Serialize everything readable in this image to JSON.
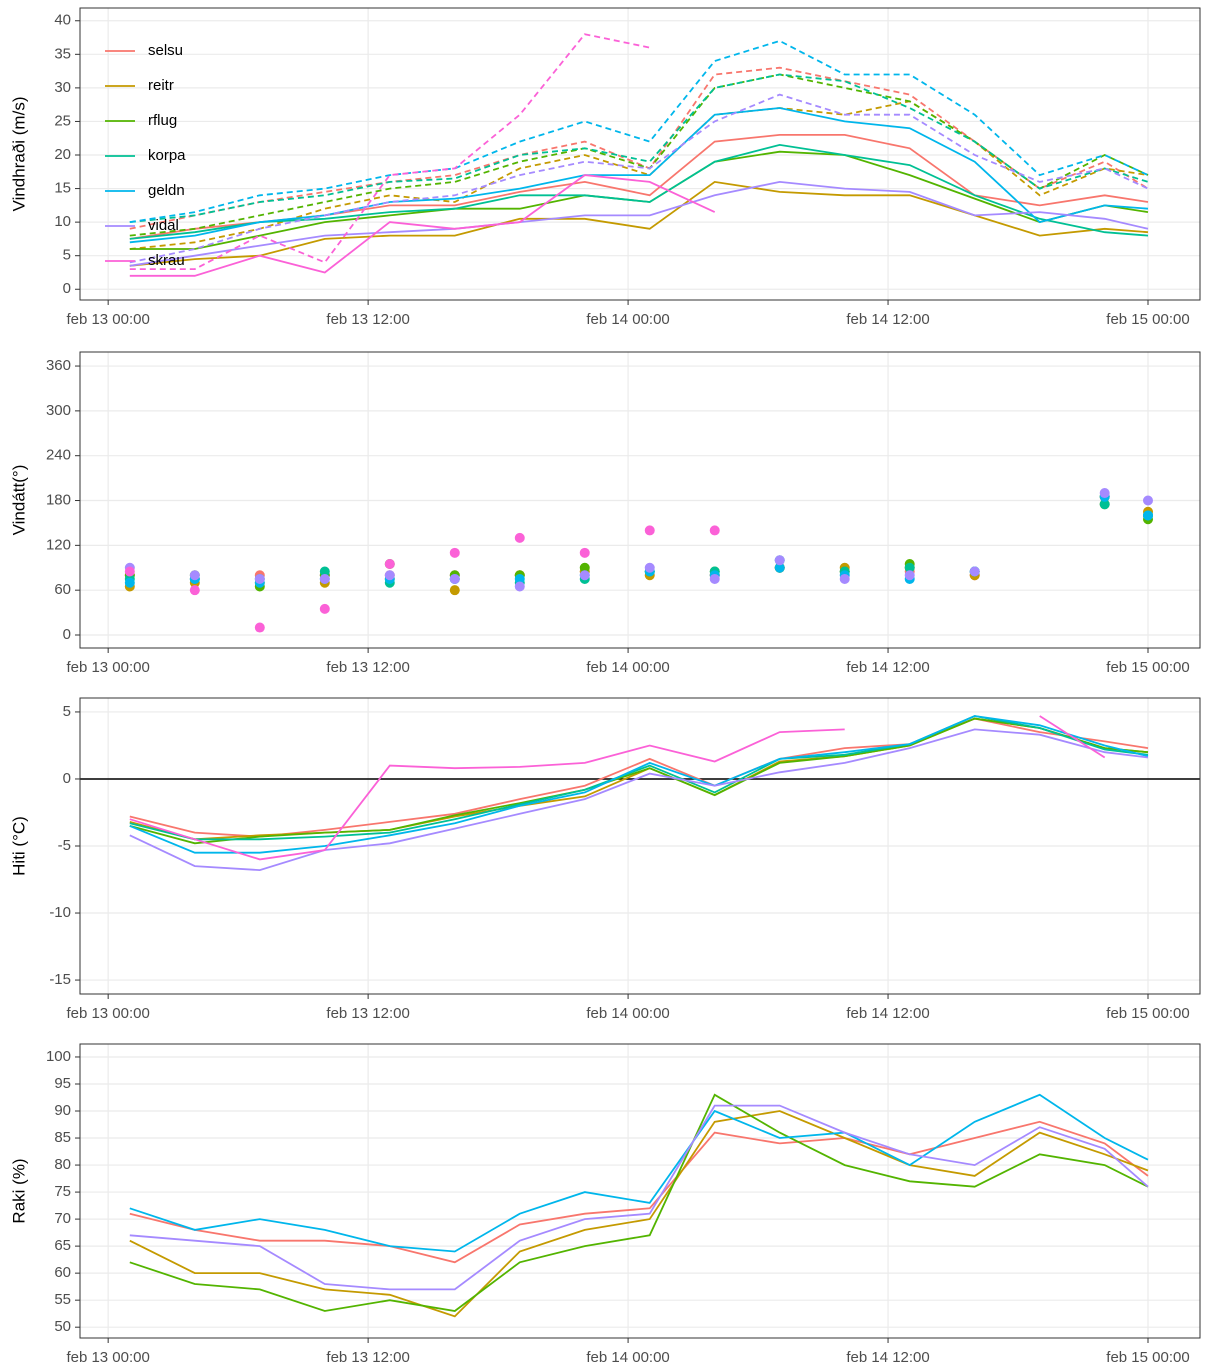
{
  "chart_data": [
    {
      "type": "line",
      "y_label": "Vindhraði (m/s)",
      "legend": "top-left",
      "grid": true,
      "x": [
        1,
        4,
        7,
        10,
        13,
        16,
        19,
        22,
        25,
        28,
        31,
        34,
        37,
        40,
        43,
        46,
        48
      ],
      "xlim": [
        -1.3,
        50.4
      ],
      "xticks": [
        {
          "value": 0,
          "label": "feb 13 00:00"
        },
        {
          "value": 12,
          "label": "feb 13 12:00"
        },
        {
          "value": 24,
          "label": "feb 14 00:00"
        },
        {
          "value": 36,
          "label": "feb 14 12:00"
        },
        {
          "value": 48,
          "label": "feb 15 00:00"
        }
      ],
      "ylim": [
        -1.6,
        41.9
      ],
      "yticks": [
        0,
        5,
        10,
        15,
        20,
        25,
        30,
        35,
        40
      ],
      "series": [
        {
          "name": "selsu",
          "color": "#F8766D",
          "values": [
            7.5,
            9,
            10,
            11,
            12.5,
            12.5,
            14.5,
            16,
            14,
            22,
            23,
            23,
            21,
            14,
            12.5,
            14,
            13
          ],
          "gust": [
            9,
            11,
            13,
            14.5,
            16,
            17,
            20,
            22,
            18,
            32,
            33,
            31,
            29,
            22,
            15,
            19,
            15
          ]
        },
        {
          "name": "reitr",
          "color": "#C49A00",
          "values": [
            3.5,
            4.5,
            5,
            7.5,
            8,
            8,
            10.5,
            10.5,
            9,
            16,
            14.5,
            14,
            14,
            11,
            8,
            9,
            8.5
          ],
          "gust": [
            6,
            7,
            9,
            12,
            14,
            13,
            18,
            20,
            17,
            26,
            27,
            26,
            28,
            22,
            14,
            18,
            17
          ]
        },
        {
          "name": "rflug",
          "color": "#53B400",
          "values": [
            6,
            6,
            8,
            10,
            11,
            12,
            12,
            14,
            13,
            19,
            20.5,
            20,
            17,
            13.5,
            10,
            12.5,
            11.5
          ],
          "gust": [
            8,
            9,
            11,
            13,
            15,
            16,
            19,
            21,
            18,
            30,
            32,
            30,
            28,
            22,
            15,
            20,
            17
          ]
        },
        {
          "name": "korpa",
          "color": "#00C094",
          "values": [
            7.5,
            8.5,
            10,
            10.5,
            11.5,
            12,
            14,
            14,
            13,
            19,
            21.5,
            20,
            18.5,
            14,
            10.5,
            8.5,
            8
          ],
          "gust": [
            10,
            11,
            13,
            14,
            16,
            16.5,
            20,
            21,
            19,
            30,
            32,
            31,
            27,
            22,
            15,
            18,
            16
          ]
        },
        {
          "name": "geldn",
          "color": "#00B6EB",
          "values": [
            7,
            8,
            10,
            11,
            13,
            13.5,
            15,
            17,
            17,
            26,
            27,
            25,
            24,
            19,
            10,
            12.5,
            12
          ],
          "gust": [
            10,
            11.5,
            14,
            15,
            17,
            18,
            22,
            25,
            22,
            34,
            37,
            32,
            32,
            26,
            17,
            20,
            17
          ]
        },
        {
          "name": "vidal",
          "color": "#A58AFF",
          "values": [
            3.5,
            5,
            6.5,
            8,
            8.5,
            9,
            10,
            11,
            11,
            14,
            16,
            15,
            14.5,
            11,
            11.5,
            10.5,
            9
          ],
          "gust": [
            4,
            6,
            9,
            11,
            13,
            14,
            17,
            19,
            18,
            25,
            29,
            26,
            26,
            20,
            16,
            18,
            15
          ]
        },
        {
          "name": "skrau",
          "color": "#FB61D7",
          "values": [
            2,
            2,
            5,
            2.5,
            10,
            9,
            10,
            17,
            16,
            11.5,
            null,
            null,
            null,
            null,
            null,
            null,
            null
          ],
          "gust": [
            3,
            3,
            8,
            4,
            17,
            18,
            26,
            38,
            36,
            null,
            null,
            null,
            null,
            null,
            null,
            null,
            null
          ]
        }
      ]
    },
    {
      "type": "scatter",
      "y_label": "Vindátt(°)",
      "grid": true,
      "x": [
        1,
        4,
        7,
        10,
        13,
        16,
        19,
        22,
        25,
        28,
        31,
        34,
        37,
        40,
        43,
        46,
        48
      ],
      "xlim": [
        -1.3,
        50.4
      ],
      "xticks": [
        {
          "value": 0,
          "label": "feb 13 00:00"
        },
        {
          "value": 12,
          "label": "feb 13 12:00"
        },
        {
          "value": 24,
          "label": "feb 14 00:00"
        },
        {
          "value": 36,
          "label": "feb 14 12:00"
        },
        {
          "value": 48,
          "label": "feb 15 00:00"
        }
      ],
      "ylim": [
        -17.4,
        378.8
      ],
      "yticks": [
        0,
        60,
        120,
        180,
        240,
        300,
        360
      ],
      "series": [
        {
          "color": "#F8766D",
          "values": [
            80,
            75,
            80,
            80,
            80,
            80,
            80,
            85,
            85,
            80,
            90,
            85,
            85,
            80,
            null,
            185,
            160
          ]
        },
        {
          "color": "#C49A00",
          "values": [
            65,
            70,
            70,
            70,
            75,
            60,
            80,
            85,
            80,
            80,
            90,
            90,
            90,
            80,
            null,
            175,
            165
          ]
        },
        {
          "color": "#53B400",
          "values": [
            80,
            80,
            65,
            80,
            95,
            80,
            80,
            90,
            85,
            85,
            90,
            85,
            95,
            85,
            null,
            185,
            155
          ]
        },
        {
          "color": "#00C094",
          "values": [
            75,
            75,
            75,
            85,
            70,
            75,
            70,
            75,
            85,
            85,
            100,
            85,
            90,
            85,
            null,
            175,
            160
          ]
        },
        {
          "color": "#00B6EB",
          "values": [
            70,
            75,
            70,
            75,
            75,
            75,
            75,
            80,
            85,
            80,
            90,
            80,
            75,
            85,
            null,
            185,
            160
          ]
        },
        {
          "color": "#A58AFF",
          "values": [
            90,
            80,
            75,
            75,
            80,
            75,
            65,
            80,
            90,
            75,
            100,
            75,
            80,
            85,
            null,
            190,
            180
          ]
        },
        {
          "color": "#FB61D7",
          "values": [
            85,
            60,
            10,
            35,
            95,
            110,
            130,
            110,
            140,
            140,
            null,
            null,
            null,
            null,
            null,
            null,
            null
          ]
        }
      ]
    },
    {
      "type": "line",
      "y_label": "Hiti (°C)",
      "grid": true,
      "hline": 0,
      "x": [
        1,
        4,
        7,
        10,
        13,
        16,
        19,
        22,
        25,
        28,
        31,
        34,
        37,
        40,
        43,
        46,
        48
      ],
      "xlim": [
        -1.3,
        50.4
      ],
      "xticks": [
        {
          "value": 0,
          "label": "feb 13 00:00"
        },
        {
          "value": 12,
          "label": "feb 13 12:00"
        },
        {
          "value": 24,
          "label": "feb 14 00:00"
        },
        {
          "value": 36,
          "label": "feb 14 12:00"
        },
        {
          "value": 48,
          "label": "feb 15 00:00"
        }
      ],
      "ylim": [
        -16.04,
        6.04
      ],
      "yticks": [
        -15,
        -10,
        -5,
        0,
        5
      ],
      "series": [
        {
          "color": "#F8766D",
          "values": [
            -2.8,
            -4,
            -4.3,
            -3.8,
            -3.2,
            -2.6,
            -1.5,
            -0.5,
            1.5,
            -0.5,
            1.5,
            2.3,
            2.6,
            4.5,
            3.5,
            2.8,
            2.3
          ]
        },
        {
          "color": "#C49A00",
          "values": [
            -3.2,
            -4.5,
            -4.2,
            -4,
            -3.8,
            -2.8,
            -2,
            -1.3,
            0.8,
            -1.2,
            1.3,
            1.7,
            2.5,
            4.5,
            3.8,
            2.3,
            2
          ]
        },
        {
          "color": "#53B400",
          "values": [
            -3.5,
            -4.8,
            -4.3,
            -4,
            -3.8,
            -2.7,
            -1.8,
            -0.8,
            0.8,
            -1.2,
            1.2,
            1.7,
            2.5,
            4.5,
            3.8,
            2.3,
            2
          ]
        },
        {
          "color": "#00C094",
          "values": [
            -3.3,
            -4.5,
            -4.5,
            -4.3,
            -4,
            -3,
            -1.9,
            -0.8,
            1,
            -1,
            1.5,
            1.8,
            2.6,
            4.7,
            3.8,
            2.2,
            1.8
          ]
        },
        {
          "color": "#00B6EB",
          "values": [
            -3.5,
            -5.5,
            -5.5,
            -5,
            -4.2,
            -3.3,
            -2,
            -1,
            1.2,
            -0.5,
            1.5,
            2,
            2.6,
            4.7,
            4,
            2.5,
            1.7
          ]
        },
        {
          "color": "#A58AFF",
          "values": [
            -4.2,
            -6.5,
            -6.8,
            -5.3,
            -4.8,
            -3.7,
            -2.6,
            -1.5,
            0.4,
            -0.5,
            0.5,
            1.2,
            2.3,
            3.7,
            3.3,
            2,
            1.6
          ]
        },
        {
          "color": "#FB61D7",
          "values": [
            -3,
            -4.5,
            -6,
            -5.3,
            1,
            0.8,
            0.9,
            1.2,
            2.5,
            1.3,
            3.5,
            3.7,
            null,
            null,
            4.7,
            1.6,
            null
          ]
        }
      ]
    },
    {
      "type": "line",
      "y_label": "Raki (%)",
      "grid": true,
      "x": [
        1,
        4,
        7,
        10,
        13,
        16,
        19,
        22,
        25,
        28,
        31,
        34,
        37,
        40,
        43,
        46,
        48
      ],
      "xlim": [
        -1.3,
        50.4
      ],
      "xticks": [
        {
          "value": 0,
          "label": "feb 13 00:00"
        },
        {
          "value": 12,
          "label": "feb 13 12:00"
        },
        {
          "value": 24,
          "label": "feb 14 00:00"
        },
        {
          "value": 36,
          "label": "feb 14 12:00"
        },
        {
          "value": 48,
          "label": "feb 15 00:00"
        }
      ],
      "ylim": [
        48,
        102.4
      ],
      "yticks": [
        50,
        55,
        60,
        65,
        70,
        75,
        80,
        85,
        90,
        95,
        100
      ],
      "series": [
        {
          "color": "#F8766D",
          "values": [
            71,
            68,
            66,
            66,
            65,
            62,
            69,
            71,
            72,
            86,
            84,
            85,
            82,
            85,
            88,
            84,
            78
          ]
        },
        {
          "color": "#C49A00",
          "values": [
            66,
            60,
            60,
            57,
            56,
            52,
            64,
            68,
            70,
            88,
            90,
            85,
            80,
            78,
            86,
            82,
            79
          ]
        },
        {
          "color": "#53B400",
          "values": [
            62,
            58,
            57,
            53,
            55,
            53,
            62,
            65,
            67,
            93,
            86,
            80,
            77,
            76,
            82,
            80,
            76
          ]
        },
        {
          "color": "#00B6EB",
          "values": [
            72,
            68,
            70,
            68,
            65,
            64,
            71,
            75,
            73,
            90,
            85,
            86,
            80,
            88,
            93,
            85,
            81
          ]
        },
        {
          "color": "#A58AFF",
          "values": [
            67,
            66,
            65,
            58,
            57,
            57,
            66,
            70,
            71,
            91,
            91,
            86,
            82,
            80,
            87,
            83,
            76
          ]
        }
      ]
    }
  ]
}
